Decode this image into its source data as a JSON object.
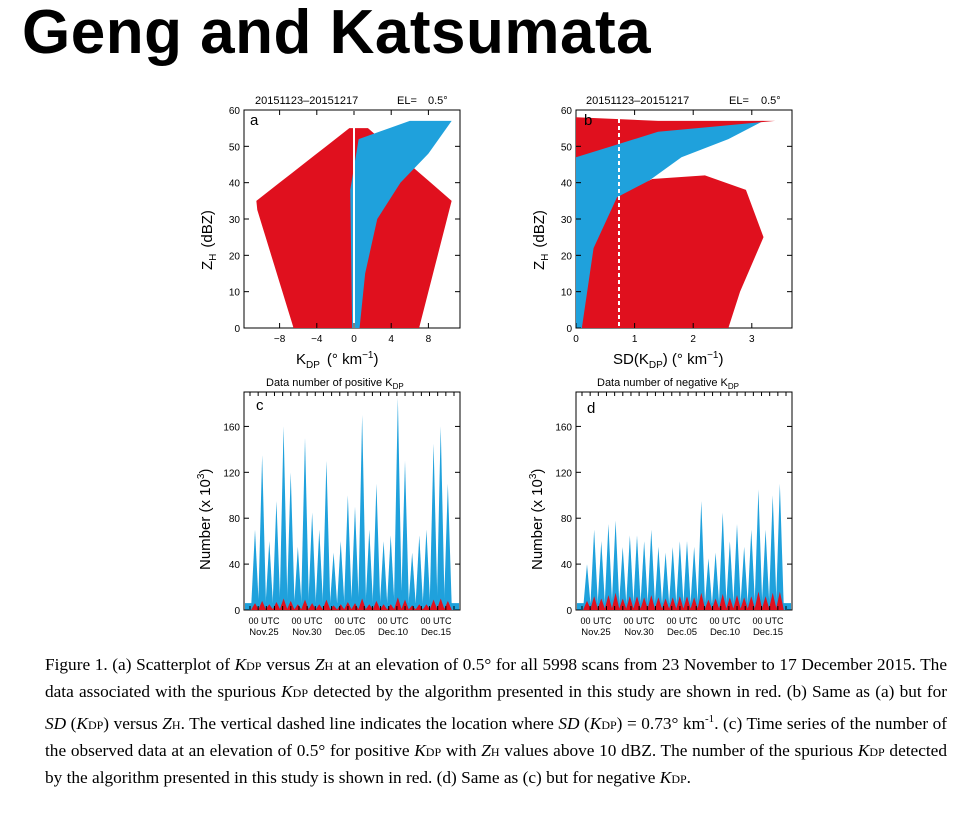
{
  "slide": {
    "title": "Geng and Katsumata"
  },
  "colors": {
    "spurious": "#e0101e",
    "observed": "#1fa1dc",
    "axis": "#000000"
  },
  "panels": {
    "a": {
      "header_left": "20151123–20151217",
      "header_el": "EL=",
      "header_el_value": "0.5°",
      "letter": "a",
      "ylabel_main": "Z",
      "ylabel_sub": "H",
      "ylabel_unit": "(dBZ)",
      "xlabel_main": "K",
      "xlabel_sub": "DP",
      "xlabel_unit": "(° km",
      "xlabel_exp": "−1",
      "xlabel_close": ")",
      "xticks": [
        "−8",
        "−4",
        "0",
        "4",
        "8"
      ],
      "yticks": [
        "0",
        "10",
        "20",
        "30",
        "40",
        "50",
        "60"
      ]
    },
    "b": {
      "header_left": "20151123–20151217",
      "header_el": "EL=",
      "header_el_value": "0.5°",
      "letter": "b",
      "ylabel_main": "Z",
      "ylabel_sub": "H",
      "ylabel_unit": "(dBZ)",
      "xlabel_main": "SD(K",
      "xlabel_sub": "DP",
      "xlabel_unit": ") (° km",
      "xlabel_exp": "−1",
      "xlabel_close": ")",
      "xticks": [
        "0",
        "1",
        "2",
        "3"
      ],
      "yticks": [
        "0",
        "10",
        "20",
        "30",
        "40",
        "50",
        "60"
      ]
    },
    "c": {
      "title_main": "Data number of positive K",
      "title_sub": "DP",
      "letter": "c",
      "ylabel": "Number (x 10",
      "ylabel_exp": "3",
      "ylabel_close": ")",
      "yticks": [
        "0",
        "40",
        "80",
        "120",
        "160"
      ],
      "xtick_row1": [
        "00 UTC",
        "00 UTC",
        "00 UTC",
        "00 UTC",
        "00 UTC"
      ],
      "xtick_row2": [
        "Nov.25",
        "Nov.30",
        "Dec.05",
        "Dec.10",
        "Dec.15"
      ]
    },
    "d": {
      "title_main": "Data number of negative K",
      "title_sub": "DP",
      "letter": "d",
      "ylabel": "Number (x 10",
      "ylabel_exp": "3",
      "ylabel_close": ")",
      "yticks": [
        "0",
        "40",
        "80",
        "120",
        "160"
      ],
      "xtick_row1": [
        "00 UTC",
        "00 UTC",
        "00 UTC",
        "00 UTC",
        "00 UTC"
      ],
      "xtick_row2": [
        "Nov.25",
        "Nov.30",
        "Dec.05",
        "Dec.10",
        "Dec.15"
      ]
    }
  },
  "chart_data": [
    {
      "type": "scatter",
      "panel": "a",
      "xlim": [
        -12,
        12
      ],
      "ylim": [
        0,
        60
      ],
      "series": [],
      "annotation_threshold_x": 0
    },
    {
      "type": "scatter",
      "panel": "b",
      "xlim": [
        0,
        4
      ],
      "ylim": [
        0,
        60
      ],
      "series": [],
      "threshold_line_x": 0.73
    },
    {
      "type": "area",
      "panel": "c",
      "ylim": [
        0,
        190
      ],
      "spikes": [
        70,
        135,
        60,
        95,
        160,
        120,
        55,
        150,
        85,
        70,
        130,
        50,
        60,
        100,
        90,
        170,
        70,
        110,
        60,
        65,
        185,
        130,
        50,
        65,
        70,
        145,
        160,
        110
      ],
      "spurious": [
        6,
        8,
        5,
        7,
        10,
        8,
        5,
        9,
        6,
        5,
        9,
        4,
        5,
        7,
        6,
        10,
        5,
        8,
        5,
        5,
        11,
        9,
        4,
        5,
        5,
        9,
        10,
        8
      ]
    },
    {
      "type": "area",
      "panel": "d",
      "ylim": [
        0,
        190
      ],
      "spikes": [
        40,
        70,
        60,
        75,
        78,
        55,
        65,
        65,
        60,
        70,
        55,
        50,
        55,
        60,
        60,
        55,
        95,
        45,
        50,
        85,
        60,
        75,
        55,
        70,
        105,
        70,
        100,
        110
      ],
      "spurious": [
        8,
        12,
        10,
        13,
        15,
        10,
        12,
        12,
        11,
        13,
        11,
        10,
        11,
        12,
        12,
        11,
        15,
        9,
        10,
        14,
        11,
        13,
        11,
        12,
        16,
        12,
        15,
        16
      ]
    }
  ],
  "caption": {
    "p1": "Figure 1. (a) Scatterplot of ",
    "kdp_k": "K",
    "kdp_sub": "DP",
    "p2": " versus ",
    "zh_z": "Z",
    "zh_sub": "H",
    "p3": " at an elevation of 0.5° for all 5998 scans from 23 November to 17 December 2015. The data associated with the spurious ",
    "p4": " detected by the algorithm presented in this study are shown in red. (b) Same as (a) but for ",
    "sd": "SD",
    "p5": " (",
    "p6": ") versus ",
    "p7": ". The vertical dashed line indicates the location where ",
    "p8": ") = 0.73° km",
    "p8_exp": "-1",
    "p9": ". (c) Time series of the number of the observed data at an elevation of 0.5° for positive ",
    "p10": " with ",
    "p11": " values above 10 dBZ. The number of the spurious ",
    "p12": " detected by the algorithm presented in this study is shown in red. (d) Same as (c) but for negative ",
    "p13": "."
  }
}
